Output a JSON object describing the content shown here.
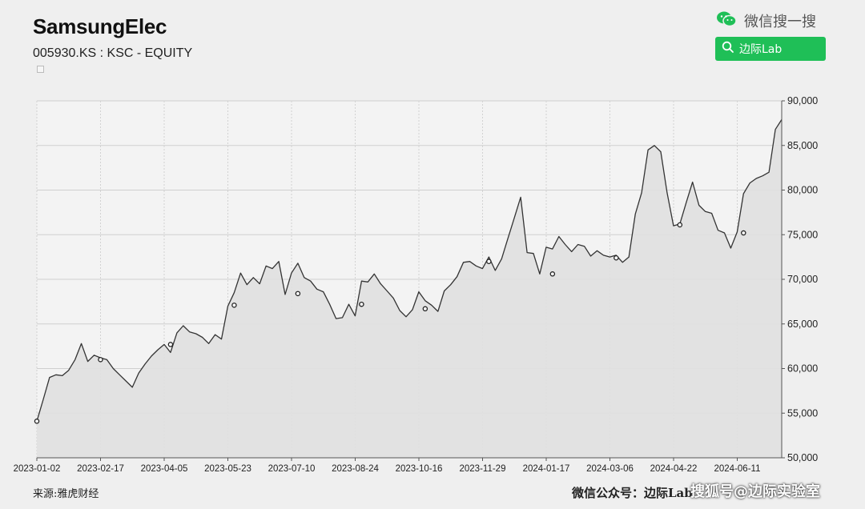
{
  "header": {
    "title": "SamsungElec",
    "subtitle": "005930.KS : KSC - EQUITY"
  },
  "wechat": {
    "search_label": "微信搜一搜",
    "button_label": "边际Lab",
    "brand_color": "#1fbf57"
  },
  "footer": {
    "source": "来源:雅虎财经",
    "account": "微信公众号：边际Lab",
    "watermark": "搜狐号@边际实验室"
  },
  "chart_data": {
    "type": "area",
    "title": "SamsungElec",
    "xlabel": "",
    "ylabel": "",
    "ylim": [
      50000,
      90000
    ],
    "y_ticks": [
      50000,
      55000,
      60000,
      65000,
      70000,
      75000,
      80000,
      85000,
      90000
    ],
    "y_tick_labels": [
      "50,000",
      "55,000",
      "60,000",
      "65,000",
      "70,000",
      "75,000",
      "80,000",
      "85,000",
      "90,000"
    ],
    "x_tick_labels": [
      "2023-01-02",
      "2023-02-17",
      "2023-04-05",
      "2023-05-23",
      "2023-07-10",
      "2023-08-24",
      "2023-10-16",
      "2023-11-29",
      "2024-01-17",
      "2024-03-06",
      "2024-04-22",
      "2024-06-11"
    ],
    "grid": true,
    "y_axis_side": "right",
    "line_color": "#333333",
    "fill_color": "#e0e0e0",
    "series": [
      {
        "values": [
          54100,
          56500,
          59000,
          59300,
          59200,
          59800,
          61000,
          62800,
          60800,
          61500,
          61200,
          61000,
          60000,
          59300,
          58600,
          57900,
          59500,
          60500,
          61400,
          62100,
          62700,
          61800,
          64000,
          64800,
          64100,
          63900,
          63500,
          62800,
          63800,
          63300,
          67000,
          68500,
          70700,
          69400,
          70200,
          69500,
          71500,
          71200,
          72000,
          68300,
          70700,
          71800,
          70200,
          69800,
          68900,
          68600,
          67200,
          65600,
          65700,
          67200,
          65900,
          69800,
          69700,
          70600,
          69500,
          68700,
          67900,
          66500,
          65800,
          66600,
          68600,
          67600,
          67100,
          66400,
          68700,
          69400,
          70300,
          71900,
          72000,
          71500,
          71200,
          72500,
          71000,
          72300,
          74600,
          76900,
          79200,
          73000,
          72900,
          70600,
          73600,
          73400,
          74800,
          73900,
          73100,
          73900,
          73700,
          72600,
          73200,
          72700,
          72500,
          72700,
          71900,
          72500,
          77300,
          79700,
          84500,
          85000,
          84300,
          79700,
          76000,
          76200,
          78600,
          80900,
          78300,
          77600,
          77400,
          75500,
          75200,
          73500,
          75300,
          79600,
          80800,
          81300,
          81600,
          82000,
          86800,
          87900
        ]
      }
    ],
    "markers": [
      {
        "index": 0,
        "value": 54100
      },
      {
        "index": 10,
        "value": 61000
      },
      {
        "index": 21,
        "value": 62700
      },
      {
        "index": 31,
        "value": 67100
      },
      {
        "index": 41,
        "value": 68400
      },
      {
        "index": 51,
        "value": 67200
      },
      {
        "index": 61,
        "value": 66700
      },
      {
        "index": 71,
        "value": 72000
      },
      {
        "index": 81,
        "value": 70600
      },
      {
        "index": 91,
        "value": 72400
      },
      {
        "index": 101,
        "value": 76100
      },
      {
        "index": 111,
        "value": 75200
      }
    ]
  }
}
